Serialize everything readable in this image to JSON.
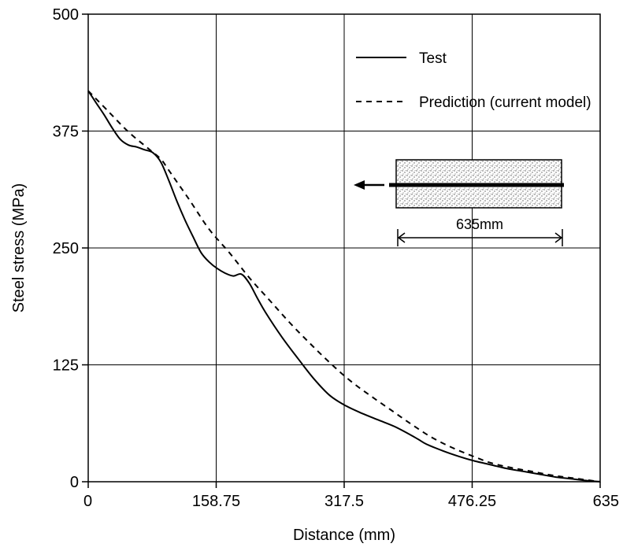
{
  "chart_data": {
    "type": "line",
    "title": "",
    "xlabel": "Distance (mm)",
    "ylabel": "Steel stress (MPa)",
    "xlim": [
      0,
      635
    ],
    "ylim": [
      0,
      500
    ],
    "xticks": [
      0,
      158.75,
      317.5,
      476.25,
      635
    ],
    "xtick_labels": [
      "0",
      "158.75",
      "317.5",
      "476.25",
      "635"
    ],
    "yticks": [
      0,
      125,
      250,
      375,
      500
    ],
    "ytick_labels": [
      "0",
      "125",
      "250",
      "375",
      "500"
    ],
    "grid": true,
    "legend_position": "top-right",
    "series": [
      {
        "name": "Test",
        "style": "solid",
        "x": [
          0,
          10,
          20,
          30,
          40,
          50,
          60,
          70,
          80,
          90,
          100,
          110,
          120,
          130,
          140,
          150,
          160,
          170,
          180,
          190,
          200,
          210,
          220,
          240,
          260,
          280,
          300,
          320,
          340,
          360,
          380,
          400,
          410,
          420,
          440,
          460,
          480,
          500,
          520,
          540,
          560,
          580,
          600,
          620,
          635
        ],
        "y": [
          418,
          405,
          392,
          378,
          366,
          360,
          358,
          355,
          352,
          342,
          322,
          300,
          280,
          262,
          245,
          235,
          228,
          223,
          220,
          222,
          212,
          196,
          181,
          155,
          132,
          110,
          92,
          81,
          73,
          66,
          59,
          50,
          45,
          40,
          33,
          27,
          22,
          18,
          14,
          11,
          8,
          5,
          3,
          1,
          0
        ]
      },
      {
        "name": "Prediction (current model)",
        "style": "dashed",
        "x": [
          0,
          25,
          50,
          75,
          90,
          100,
          125,
          150,
          175,
          200,
          225,
          250,
          275,
          300,
          325,
          350,
          375,
          400,
          425,
          450,
          475,
          500,
          525,
          550,
          575,
          600,
          635
        ],
        "y": [
          418,
          396,
          374,
          356,
          345,
          333,
          302,
          270,
          245,
          218,
          194,
          170,
          148,
          127,
          108,
          92,
          77,
          62,
          48,
          37,
          28,
          20,
          15,
          11,
          7,
          4,
          0
        ]
      }
    ],
    "inset": {
      "length_label": "635mm"
    }
  }
}
